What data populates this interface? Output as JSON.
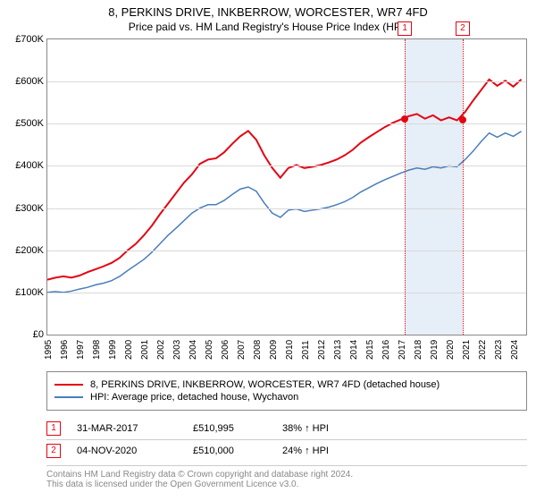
{
  "title": "8, PERKINS DRIVE, INKBERROW, WORCESTER, WR7 4FD",
  "subtitle": "Price paid vs. HM Land Registry's House Price Index (HPI)",
  "chart": {
    "type": "line",
    "background_color": "#ffffff",
    "grid_color": "#d9d9d9",
    "border_color": "#888888",
    "x_years": [
      1995,
      1996,
      1997,
      1998,
      1999,
      2000,
      2001,
      2002,
      2003,
      2004,
      2005,
      2006,
      2007,
      2008,
      2009,
      2010,
      2011,
      2012,
      2013,
      2014,
      2015,
      2016,
      2017,
      2018,
      2019,
      2020,
      2021,
      2022,
      2023,
      2024
    ],
    "x_min": 1995,
    "x_max": 2024.8,
    "y_min": 0,
    "y_max": 700000,
    "y_ticks": [
      0,
      100000,
      200000,
      300000,
      400000,
      500000,
      600000,
      700000
    ],
    "y_tick_labels": [
      "£0",
      "£100K",
      "£200K",
      "£300K",
      "£400K",
      "£500K",
      "£600K",
      "£700K"
    ],
    "series": [
      {
        "name": "price_paid",
        "color": "#e30613",
        "width": 2,
        "points": [
          [
            1995,
            130000
          ],
          [
            1995.5,
            135000
          ],
          [
            1996,
            138000
          ],
          [
            1996.5,
            135000
          ],
          [
            1997,
            140000
          ],
          [
            1997.5,
            148000
          ],
          [
            1998,
            155000
          ],
          [
            1998.5,
            162000
          ],
          [
            1999,
            170000
          ],
          [
            1999.5,
            182000
          ],
          [
            2000,
            200000
          ],
          [
            2000.5,
            215000
          ],
          [
            2001,
            235000
          ],
          [
            2001.5,
            258000
          ],
          [
            2002,
            285000
          ],
          [
            2002.5,
            310000
          ],
          [
            2003,
            335000
          ],
          [
            2003.5,
            360000
          ],
          [
            2004,
            380000
          ],
          [
            2004.5,
            405000
          ],
          [
            2005,
            415000
          ],
          [
            2005.5,
            418000
          ],
          [
            2006,
            432000
          ],
          [
            2006.5,
            452000
          ],
          [
            2007,
            470000
          ],
          [
            2007.5,
            483000
          ],
          [
            2008,
            462000
          ],
          [
            2008.5,
            425000
          ],
          [
            2009,
            395000
          ],
          [
            2009.5,
            372000
          ],
          [
            2010,
            395000
          ],
          [
            2010.5,
            402000
          ],
          [
            2011,
            395000
          ],
          [
            2011.5,
            398000
          ],
          [
            2012,
            402000
          ],
          [
            2012.5,
            408000
          ],
          [
            2013,
            415000
          ],
          [
            2013.5,
            425000
          ],
          [
            2014,
            438000
          ],
          [
            2014.5,
            455000
          ],
          [
            2015,
            468000
          ],
          [
            2015.5,
            480000
          ],
          [
            2016,
            492000
          ],
          [
            2016.5,
            502000
          ],
          [
            2017,
            510000
          ],
          [
            2017.5,
            518000
          ],
          [
            2018,
            523000
          ],
          [
            2018.5,
            512000
          ],
          [
            2019,
            520000
          ],
          [
            2019.5,
            508000
          ],
          [
            2020,
            515000
          ],
          [
            2020.5,
            508000
          ],
          [
            2021,
            528000
          ],
          [
            2021.5,
            555000
          ],
          [
            2022,
            580000
          ],
          [
            2022.5,
            605000
          ],
          [
            2023,
            590000
          ],
          [
            2023.5,
            602000
          ],
          [
            2024,
            588000
          ],
          [
            2024.5,
            605000
          ]
        ]
      },
      {
        "name": "hpi",
        "color": "#4a7ebb",
        "width": 1.5,
        "points": [
          [
            1995,
            100000
          ],
          [
            1995.5,
            102000
          ],
          [
            1996,
            100000
          ],
          [
            1996.5,
            103000
          ],
          [
            1997,
            108000
          ],
          [
            1997.5,
            112000
          ],
          [
            1998,
            118000
          ],
          [
            1998.5,
            122000
          ],
          [
            1999,
            128000
          ],
          [
            1999.5,
            138000
          ],
          [
            2000,
            152000
          ],
          [
            2000.5,
            165000
          ],
          [
            2001,
            178000
          ],
          [
            2001.5,
            195000
          ],
          [
            2002,
            215000
          ],
          [
            2002.5,
            235000
          ],
          [
            2003,
            252000
          ],
          [
            2003.5,
            270000
          ],
          [
            2004,
            288000
          ],
          [
            2004.5,
            300000
          ],
          [
            2005,
            308000
          ],
          [
            2005.5,
            308000
          ],
          [
            2006,
            318000
          ],
          [
            2006.5,
            332000
          ],
          [
            2007,
            345000
          ],
          [
            2007.5,
            350000
          ],
          [
            2008,
            340000
          ],
          [
            2008.5,
            312000
          ],
          [
            2009,
            288000
          ],
          [
            2009.5,
            278000
          ],
          [
            2010,
            295000
          ],
          [
            2010.5,
            298000
          ],
          [
            2011,
            292000
          ],
          [
            2011.5,
            295000
          ],
          [
            2012,
            298000
          ],
          [
            2012.5,
            302000
          ],
          [
            2013,
            308000
          ],
          [
            2013.5,
            315000
          ],
          [
            2014,
            325000
          ],
          [
            2014.5,
            338000
          ],
          [
            2015,
            348000
          ],
          [
            2015.5,
            358000
          ],
          [
            2016,
            367000
          ],
          [
            2016.5,
            375000
          ],
          [
            2017,
            383000
          ],
          [
            2017.5,
            390000
          ],
          [
            2018,
            395000
          ],
          [
            2018.5,
            392000
          ],
          [
            2019,
            398000
          ],
          [
            2019.5,
            395000
          ],
          [
            2020,
            400000
          ],
          [
            2020.5,
            398000
          ],
          [
            2021,
            415000
          ],
          [
            2021.5,
            435000
          ],
          [
            2022,
            458000
          ],
          [
            2022.5,
            478000
          ],
          [
            2023,
            468000
          ],
          [
            2023.5,
            478000
          ],
          [
            2024,
            470000
          ],
          [
            2024.5,
            482000
          ]
        ]
      }
    ],
    "band": {
      "start": 2017.25,
      "end": 2020.85,
      "color": "#e6eef7"
    },
    "markers": [
      {
        "num": "1",
        "x": 2017.25,
        "y": 510995,
        "line_color": "#e30613"
      },
      {
        "num": "2",
        "x": 2020.85,
        "y": 510000,
        "line_color": "#e30613"
      }
    ]
  },
  "legend": [
    {
      "color": "#e30613",
      "label": "8, PERKINS DRIVE, INKBERROW, WORCESTER, WR7 4FD (detached house)"
    },
    {
      "color": "#4a7ebb",
      "label": "HPI: Average price, detached house, Wychavon"
    }
  ],
  "sales": [
    {
      "num": "1",
      "date": "31-MAR-2017",
      "price": "£510,995",
      "hpi": "38% ↑ HPI"
    },
    {
      "num": "2",
      "date": "04-NOV-2020",
      "price": "£510,000",
      "hpi": "24% ↑ HPI"
    }
  ],
  "footer": {
    "line1": "Contains HM Land Registry data © Crown copyright and database right 2024.",
    "line2": "This data is licensed under the Open Government Licence v3.0."
  }
}
